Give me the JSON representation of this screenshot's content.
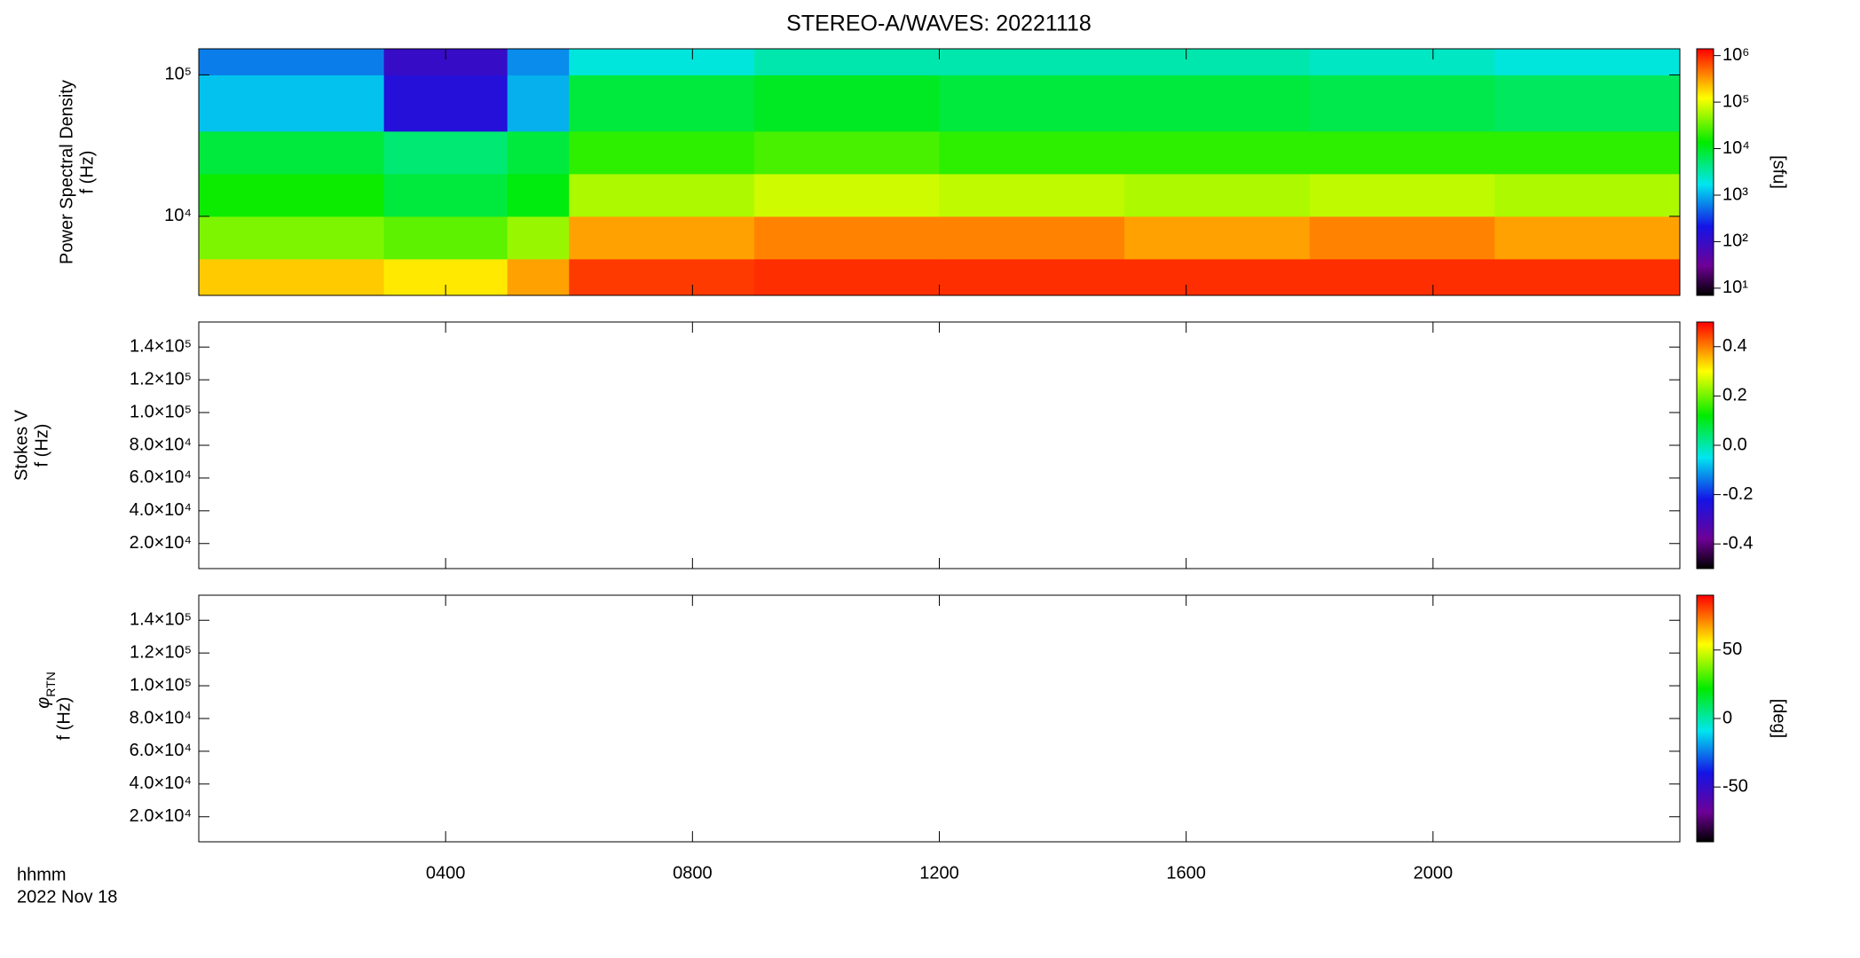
{
  "title": "STEREO-A/WAVES: 20221118",
  "x_name": "hhmm",
  "x_date": "2022 Nov 18",
  "chart_data": [
    {
      "type": "heatmap",
      "ylabel": [
        "Power Spectral Density",
        "f (Hz)"
      ],
      "xlim": [
        0,
        24
      ],
      "xticks": [
        4,
        8,
        12,
        16,
        20
      ],
      "ylog": true,
      "ylim": [
        2760,
        153000
      ],
      "yticks": [
        {
          "value": 10000,
          "label": "10⁴"
        },
        {
          "value": 100000,
          "label": "10⁵"
        }
      ],
      "xbins": [
        0,
        3,
        5,
        6,
        9,
        12,
        15,
        18,
        21,
        24
      ],
      "ybins": [
        2760,
        5000,
        10000,
        20000,
        40000,
        100000,
        153000
      ],
      "z": [
        [
          200000,
          150000,
          300000,
          800000,
          900000,
          900000,
          900000,
          900000,
          900000
        ],
        [
          40000,
          30000,
          50000,
          300000,
          400000,
          400000,
          300000,
          400000,
          300000
        ],
        [
          15000,
          8000,
          12000,
          60000,
          80000,
          70000,
          60000,
          70000,
          60000
        ],
        [
          8000,
          5000,
          8000,
          20000,
          25000,
          20000,
          20000,
          20000,
          20000
        ],
        [
          1200,
          150,
          1000,
          8000,
          10000,
          8000,
          8000,
          7000,
          6000
        ],
        [
          600,
          100,
          700,
          2000,
          3000,
          3000,
          3000,
          2500,
          2000
        ]
      ],
      "colorbar": {
        "log": true,
        "lim": [
          7,
          1400000
        ],
        "label": "[sfu]",
        "ticks": [
          {
            "value": 10,
            "label": "10¹"
          },
          {
            "value": 100,
            "label": "10²"
          },
          {
            "value": 1000,
            "label": "10³"
          },
          {
            "value": 10000,
            "label": "10⁴"
          },
          {
            "value": 100000,
            "label": "10⁵"
          },
          {
            "value": 1000000,
            "label": "10⁶"
          }
        ]
      }
    },
    {
      "type": "heatmap",
      "ylabel": [
        "Stokes V",
        "f (Hz)"
      ],
      "xlim": [
        0,
        24
      ],
      "xticks": [
        4,
        8,
        12,
        16,
        20
      ],
      "ylog": false,
      "ylim": [
        4700,
        155300
      ],
      "yticks": [
        {
          "value": 20000,
          "label": "2.0×10⁴"
        },
        {
          "value": 40000,
          "label": "4.0×10⁴"
        },
        {
          "value": 60000,
          "label": "6.0×10⁴"
        },
        {
          "value": 80000,
          "label": "8.0×10⁴"
        },
        {
          "value": 100000,
          "label": "1.0×10⁵"
        },
        {
          "value": 120000,
          "label": "1.2×10⁵"
        },
        {
          "value": 140000,
          "label": "1.4×10⁵"
        }
      ],
      "colorbar": {
        "log": false,
        "lim": [
          -0.5,
          0.5
        ],
        "ticks": [
          -0.4,
          -0.2,
          {
            "value": 0,
            "label": "0.0"
          },
          0.2,
          0.4
        ]
      }
    },
    {
      "type": "heatmap",
      "ylabel_symbol": "φ",
      "ylabel_subscript": "RTN",
      "ylabel": [
        "f (Hz)"
      ],
      "xlim": [
        0,
        24
      ],
      "xticks": [
        {
          "value": 4,
          "label": "0400"
        },
        {
          "value": 8,
          "label": "0800"
        },
        {
          "value": 12,
          "label": "1200"
        },
        {
          "value": 16,
          "label": "1600"
        },
        {
          "value": 20,
          "label": "2000"
        }
      ],
      "ylog": false,
      "ylim": [
        4700,
        155300
      ],
      "yticks": [
        {
          "value": 20000,
          "label": "2.0×10⁴"
        },
        {
          "value": 40000,
          "label": "4.0×10⁴"
        },
        {
          "value": 60000,
          "label": "6.0×10⁴"
        },
        {
          "value": 80000,
          "label": "8.0×10⁴"
        },
        {
          "value": 100000,
          "label": "1.0×10⁵"
        },
        {
          "value": 120000,
          "label": "1.2×10⁵"
        },
        {
          "value": 140000,
          "label": "1.4×10⁵"
        }
      ],
      "colorbar": {
        "log": false,
        "lim": [
          -90,
          90
        ],
        "label": "[deg]",
        "ticks": [
          -50,
          0,
          50
        ]
      }
    }
  ]
}
